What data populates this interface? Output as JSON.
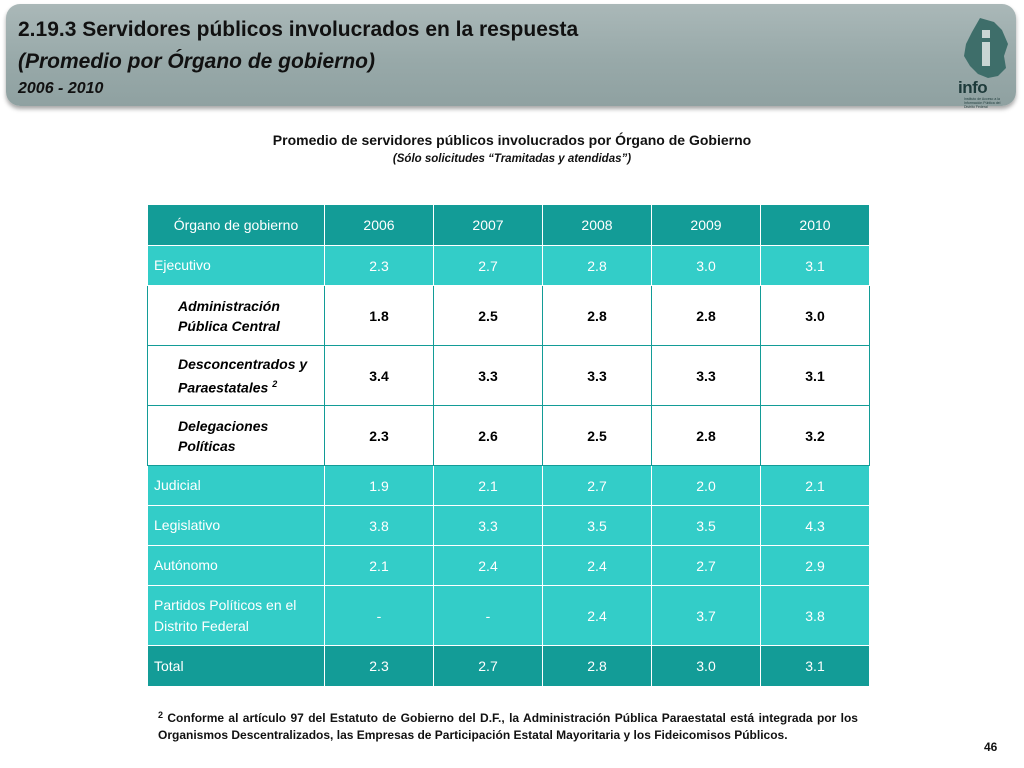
{
  "header": {
    "title": "2.19.3 Servidores públicos involucrados en la respuesta",
    "subtitle": "(Promedio por Órgano de gobierno)",
    "years": "2006 - 2010",
    "logo_text": "info",
    "logo_small": "Instituto de Acceso a la Información Pública del Distrito Federal"
  },
  "table_title": "Promedio de servidores públicos involucrados por Órgano de Gobierno",
  "table_note": "(Sólo solicitudes “Tramitadas y atendidas”)",
  "table": {
    "headers": [
      "Órgano de gobierno",
      "2006",
      "2007",
      "2008",
      "2009",
      "2010"
    ],
    "rows": [
      {
        "label": "Ejecutivo",
        "values": [
          "2.3",
          "2.7",
          "2.8",
          "3.0",
          "3.1"
        ]
      },
      {
        "label": "Administración Pública Central",
        "values": [
          "1.8",
          "2.5",
          "2.8",
          "2.8",
          "3.0"
        ]
      },
      {
        "label": "Desconcentrados y Paraestatales",
        "sup": "2",
        "values": [
          "3.4",
          "3.3",
          "3.3",
          "3.3",
          "3.1"
        ]
      },
      {
        "label": "Delegaciones Políticas",
        "values": [
          "2.3",
          "2.6",
          "2.5",
          "2.8",
          "3.2"
        ]
      },
      {
        "label": "Judicial",
        "values": [
          "1.9",
          "2.1",
          "2.7",
          "2.0",
          "2.1"
        ]
      },
      {
        "label": "Legislativo",
        "values": [
          "3.8",
          "3.3",
          "3.5",
          "3.5",
          "4.3"
        ]
      },
      {
        "label": "Autónomo",
        "values": [
          "2.1",
          "2.4",
          "2.4",
          "2.7",
          "2.9"
        ]
      },
      {
        "label": "Partidos Políticos en el Distrito Federal",
        "values": [
          "-",
          "-",
          "2.4",
          "3.7",
          "3.8"
        ]
      },
      {
        "label": "Total",
        "values": [
          "2.3",
          "2.7",
          "2.8",
          "3.0",
          "3.1"
        ]
      }
    ]
  },
  "footnote": {
    "ref": "2",
    "text": "Conforme al artículo 97 del Estatuto de Gobierno del D.F., la Administración Pública Paraestatal está integrada por los Organismos Descentralizados, las Empresas de Participación Estatal Mayoritaria y los Fideicomisos Públicos."
  },
  "page_number": "46",
  "colors": {
    "header_teal": "#139c97",
    "category_teal": "#33cdc8",
    "banner_gray": "#9aabab"
  }
}
